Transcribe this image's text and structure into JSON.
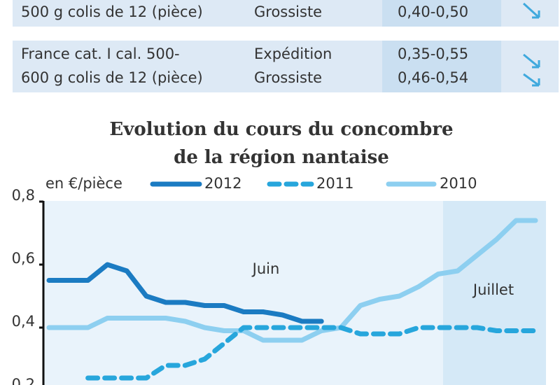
{
  "table": {
    "rows": [
      {
        "product": [
          "500 g colis de 12 (pièce)"
        ],
        "market": [
          "Grossiste"
        ],
        "price": [
          "0,40-0,50"
        ]
      },
      {
        "product": [
          "France cat. I cal. 500-",
          "600 g colis de 12 (pièce)"
        ],
        "market": [
          "Expédition",
          "Grossiste"
        ],
        "price": [
          "0,35-0,55",
          "0,46-0,54"
        ]
      }
    ]
  },
  "chart_data": {
    "type": "line",
    "title": [
      "Evolution du cours du concombre",
      "de la région nantaise"
    ],
    "y_label": "en €/pièce",
    "annotations": [
      "Juin",
      "Juillet"
    ],
    "x": [
      0,
      1,
      2,
      3,
      4,
      5,
      6,
      7,
      8,
      9,
      10,
      11,
      12,
      13,
      14,
      15,
      16,
      17,
      18,
      19,
      20,
      21,
      22,
      23,
      24,
      25
    ],
    "xlim": [
      0,
      25
    ],
    "ylim": [
      0.2,
      0.8
    ],
    "yticks": [
      {
        "value": 0.2,
        "label": "0,2"
      },
      {
        "value": 0.4,
        "label": "0,4"
      },
      {
        "value": 0.6,
        "label": "0,6"
      },
      {
        "value": 0.8,
        "label": "0,8"
      }
    ],
    "series": [
      {
        "name": "2012",
        "color": "#1b7bc2",
        "dash": false,
        "values": [
          0.55,
          0.55,
          0.55,
          0.6,
          0.58,
          0.5,
          0.48,
          0.48,
          0.47,
          0.47,
          0.45,
          0.45,
          0.44,
          0.42,
          0.42,
          null,
          null,
          null,
          null,
          null,
          null,
          null,
          null,
          null,
          null,
          null
        ]
      },
      {
        "name": "2011",
        "color": "#27a6dc",
        "dash": true,
        "values": [
          null,
          null,
          0.24,
          0.24,
          0.24,
          0.24,
          0.28,
          0.28,
          0.3,
          0.35,
          0.4,
          0.4,
          0.4,
          0.4,
          0.4,
          0.4,
          0.38,
          0.38,
          0.38,
          0.4,
          0.4,
          0.4,
          0.4,
          0.39,
          0.39,
          0.39
        ]
      },
      {
        "name": "2010",
        "color": "#8dcff0",
        "dash": false,
        "values": [
          0.4,
          0.4,
          0.4,
          0.43,
          0.43,
          0.43,
          0.43,
          0.42,
          0.4,
          0.39,
          0.39,
          0.36,
          0.36,
          0.36,
          0.39,
          0.4,
          0.47,
          0.49,
          0.5,
          0.53,
          0.57,
          0.58,
          0.63,
          0.68,
          0.74,
          0.74
        ]
      }
    ]
  }
}
